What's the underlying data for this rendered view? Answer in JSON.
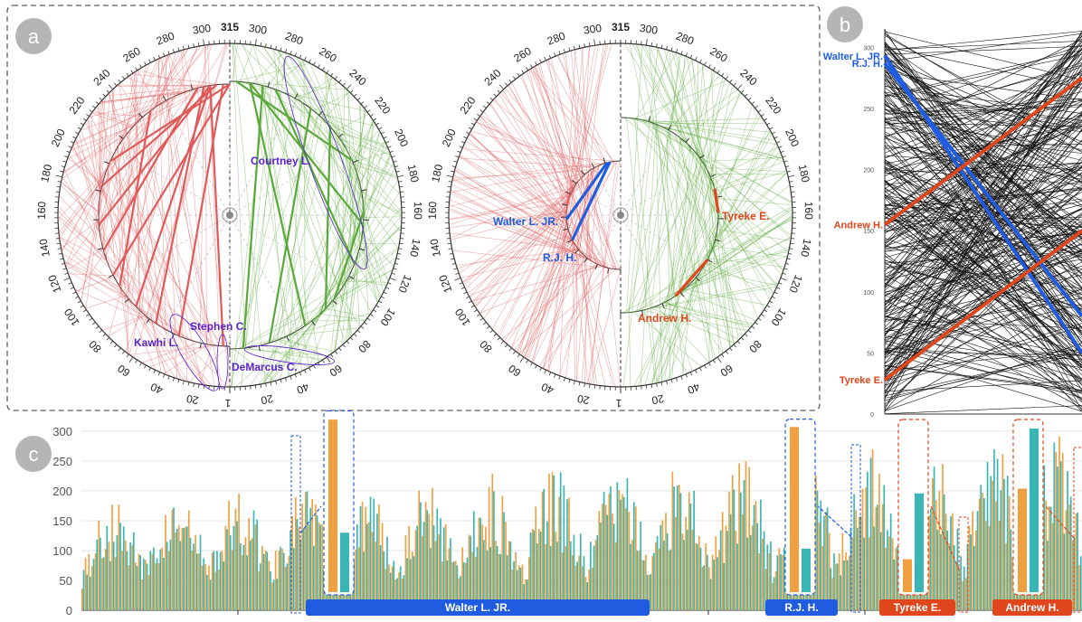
{
  "panels": {
    "a": {
      "badge": "a"
    },
    "b": {
      "badge": "b"
    },
    "c": {
      "badge": "c"
    }
  },
  "colors": {
    "red_side": "#e05a5a",
    "green_side": "#5aa83a",
    "highlight_blue": "#1f5ce0",
    "highlight_red": "#e0461c",
    "label_purple": "#5a1fd0",
    "bar_orange": "#f0a040",
    "bar_teal": "#3ab5b5"
  },
  "chart_data": [
    {
      "type": "chord-circle",
      "panel": "a-left",
      "title": "",
      "ticks_outer_left": [
        "1",
        "20",
        "40",
        "60",
        "80",
        "100",
        "120",
        "140",
        "160",
        "180",
        "200",
        "220",
        "240",
        "260",
        "280",
        "300",
        "315"
      ],
      "ticks_outer_right": [
        "300",
        "280",
        "260",
        "240",
        "220",
        "200",
        "180",
        "160",
        "140",
        "120",
        "100",
        "80",
        "60",
        "40",
        "20"
      ],
      "annotations": [
        "Courtney L.",
        "Kawhi L.",
        "Stephen C.",
        "DeMarcus C."
      ]
    },
    {
      "type": "chord-circle",
      "panel": "a-right",
      "title": "",
      "ticks_outer_left": [
        "1",
        "20",
        "40",
        "60",
        "80",
        "100",
        "120",
        "140",
        "160",
        "180",
        "200",
        "220",
        "240",
        "260",
        "280",
        "300",
        "315"
      ],
      "ticks_outer_right": [
        "300",
        "280",
        "260",
        "240",
        "220",
        "200",
        "180",
        "160",
        "140",
        "120",
        "100",
        "80",
        "60",
        "40",
        "20"
      ],
      "annotations": [
        "Walter L. JR.",
        "R.J. H.",
        "Tyreke E.",
        "Andrew H."
      ]
    },
    {
      "type": "line",
      "panel": "b",
      "title": "",
      "yticks": [
        "300",
        "250",
        "200",
        "150",
        "100",
        "50",
        "0"
      ],
      "ylim": [
        0,
        315
      ],
      "highlighted": [
        {
          "name": "Walter L. JR.",
          "from": 293,
          "to": 50,
          "color": "blue"
        },
        {
          "name": "R.J. H.",
          "from": 287,
          "to": 80,
          "color": "blue"
        },
        {
          "name": "Andrew H.",
          "from": 155,
          "to": 275,
          "color": "red"
        },
        {
          "name": "Tyreke E.",
          "from": 28,
          "to": 150,
          "color": "red"
        }
      ]
    },
    {
      "type": "bar",
      "panel": "c",
      "title": "",
      "yticks": [
        "300",
        "250",
        "200",
        "150",
        "100",
        "50",
        "0"
      ],
      "ylim": [
        0,
        315
      ],
      "callouts": [
        {
          "name": "Walter L. JR.",
          "orange": 325,
          "teal": 112,
          "color": "blue"
        },
        {
          "name": "R.J. H.",
          "orange": 311,
          "teal": 82,
          "color": "blue"
        },
        {
          "name": "Tyreke E.",
          "orange": 62,
          "teal": 186,
          "color": "red"
        },
        {
          "name": "Andrew H.",
          "orange": 195,
          "teal": 308,
          "color": "red"
        }
      ]
    }
  ]
}
